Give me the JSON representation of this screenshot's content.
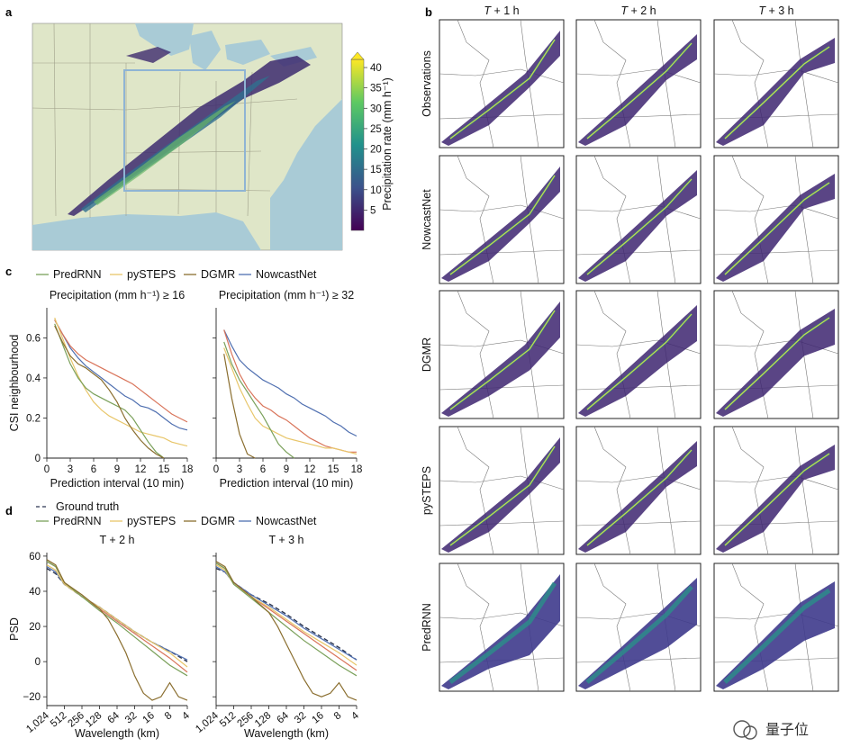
{
  "panel_labels": {
    "a": "a",
    "b": "b",
    "c": "c",
    "d": "d"
  },
  "colorbar": {
    "label": "Precipitation rate (mm h⁻¹)",
    "ticks": [
      "5",
      "10",
      "15",
      "20",
      "25",
      "30",
      "35",
      "40"
    ],
    "colors": [
      "#440154",
      "#3b528b",
      "#21918c",
      "#5ec962",
      "#fde725"
    ]
  },
  "grid": {
    "columns": [
      "T + 1 h",
      "T + 2 h",
      "T + 3 h"
    ],
    "rows": [
      "Observations",
      "NowcastNet",
      "DGMR",
      "pySTEPS",
      "PredRNN"
    ]
  },
  "series_colors": {
    "PredRNN": "#7aa05a",
    "pySTEPS": "#e8c66a",
    "DGMR": "#8a6e2f",
    "NowcastNet": "#4f6fb0",
    "Red": "#d9745a",
    "GroundTruth": "#2b3550"
  },
  "legend_c": [
    "PredRNN",
    "pySTEPS",
    "DGMR",
    "NowcastNet"
  ],
  "legend_d": {
    "gt": "Ground truth",
    "items": [
      "PredRNN",
      "pySTEPS",
      "DGMR",
      "NowcastNet"
    ]
  },
  "watermark": "量子位",
  "chart_data": [
    {
      "type": "line",
      "title": "Precipitation (mm h⁻¹) ≥ 16",
      "xlabel": "Prediction interval (10 min)",
      "ylabel": "CSI neighbourhood",
      "xlim": [
        0,
        18
      ],
      "ylim": [
        0,
        0.75
      ],
      "xticks": [
        "0",
        "3",
        "6",
        "9",
        "12",
        "15",
        "18"
      ],
      "yticks": [
        "0",
        "0.2",
        "0.4",
        "0.6"
      ],
      "series": [
        {
          "key": "NowcastNet",
          "x": [
            1,
            2,
            3,
            4,
            5,
            6,
            7,
            8,
            9,
            10,
            11,
            12,
            13,
            14,
            15,
            16,
            17,
            18
          ],
          "y": [
            0.69,
            0.62,
            0.55,
            0.5,
            0.46,
            0.43,
            0.4,
            0.37,
            0.34,
            0.31,
            0.29,
            0.26,
            0.25,
            0.23,
            0.2,
            0.17,
            0.15,
            0.14
          ]
        },
        {
          "key": "Red",
          "x": [
            1,
            2,
            3,
            4,
            5,
            6,
            7,
            8,
            9,
            10,
            11,
            12,
            13,
            14,
            15,
            16,
            17,
            18
          ],
          "y": [
            0.69,
            0.62,
            0.56,
            0.52,
            0.49,
            0.47,
            0.45,
            0.43,
            0.41,
            0.39,
            0.37,
            0.34,
            0.31,
            0.28,
            0.25,
            0.22,
            0.2,
            0.18
          ]
        },
        {
          "key": "pySTEPS",
          "x": [
            1,
            2,
            3,
            4,
            5,
            6,
            7,
            8,
            9,
            10,
            11,
            12,
            13,
            14,
            15,
            16,
            17,
            18
          ],
          "y": [
            0.7,
            0.6,
            0.5,
            0.41,
            0.34,
            0.28,
            0.24,
            0.21,
            0.19,
            0.17,
            0.15,
            0.13,
            0.12,
            0.11,
            0.1,
            0.08,
            0.07,
            0.06
          ]
        },
        {
          "key": "PredRNN",
          "x": [
            1,
            2,
            3,
            4,
            5,
            6,
            7,
            8,
            9,
            10,
            11,
            12,
            13,
            14,
            15
          ],
          "y": [
            0.67,
            0.57,
            0.47,
            0.4,
            0.35,
            0.32,
            0.3,
            0.28,
            0.26,
            0.24,
            0.2,
            0.14,
            0.08,
            0.03,
            0.0
          ]
        },
        {
          "key": "DGMR",
          "x": [
            1,
            2,
            3,
            4,
            5,
            6,
            7,
            8,
            9,
            10,
            11,
            12,
            13,
            14,
            15
          ],
          "y": [
            0.66,
            0.58,
            0.51,
            0.47,
            0.45,
            0.42,
            0.39,
            0.34,
            0.28,
            0.2,
            0.14,
            0.09,
            0.05,
            0.02,
            0.0
          ]
        }
      ]
    },
    {
      "type": "line",
      "title": "Precipitation (mm h⁻¹) ≥ 32",
      "xlabel": "Prediction interval (10 min)",
      "ylabel": "",
      "xlim": [
        0,
        18
      ],
      "ylim": [
        0,
        0.75
      ],
      "xticks": [
        "0",
        "3",
        "6",
        "9",
        "12",
        "15",
        "18"
      ],
      "yticks": [],
      "series": [
        {
          "key": "NowcastNet",
          "x": [
            1,
            2,
            3,
            4,
            5,
            6,
            7,
            8,
            9,
            10,
            11,
            12,
            13,
            14,
            15,
            16,
            17,
            18
          ],
          "y": [
            0.64,
            0.56,
            0.49,
            0.45,
            0.42,
            0.39,
            0.37,
            0.35,
            0.32,
            0.3,
            0.27,
            0.25,
            0.23,
            0.21,
            0.18,
            0.16,
            0.13,
            0.11
          ]
        },
        {
          "key": "Red",
          "x": [
            1,
            2,
            3,
            4,
            5,
            6,
            7,
            8,
            9,
            10,
            11,
            12,
            13,
            14,
            15,
            16,
            17,
            18
          ],
          "y": [
            0.64,
            0.52,
            0.42,
            0.35,
            0.3,
            0.26,
            0.24,
            0.21,
            0.19,
            0.16,
            0.13,
            0.1,
            0.08,
            0.06,
            0.05,
            0.04,
            0.03,
            0.03
          ]
        },
        {
          "key": "pySTEPS",
          "x": [
            1,
            2,
            3,
            4,
            5,
            6,
            7,
            8,
            9,
            10,
            11,
            12,
            13,
            14,
            15,
            16,
            17,
            18
          ],
          "y": [
            0.55,
            0.45,
            0.35,
            0.27,
            0.2,
            0.16,
            0.14,
            0.12,
            0.1,
            0.09,
            0.08,
            0.07,
            0.06,
            0.05,
            0.05,
            0.04,
            0.03,
            0.02
          ]
        },
        {
          "key": "PredRNN",
          "x": [
            1,
            2,
            3,
            4,
            5,
            6,
            7,
            8,
            9,
            10
          ],
          "y": [
            0.58,
            0.47,
            0.39,
            0.33,
            0.27,
            0.21,
            0.14,
            0.07,
            0.03,
            0.0
          ]
        },
        {
          "key": "DGMR",
          "x": [
            1,
            2,
            3,
            4,
            5
          ],
          "y": [
            0.52,
            0.3,
            0.12,
            0.02,
            0.0
          ]
        }
      ]
    },
    {
      "type": "line",
      "title": "T + 2 h",
      "xlabel": "Wavelength (km)",
      "ylabel": "PSD",
      "xlim": [
        0,
        8
      ],
      "ylim": [
        -25,
        62
      ],
      "xticks": [
        "1,024",
        "512",
        "256",
        "128",
        "64",
        "32",
        "16",
        "8",
        "4"
      ],
      "yticks": [
        "−20",
        "0",
        "20",
        "40",
        "60"
      ],
      "series": [
        {
          "key": "GroundTruth",
          "x": [
            0,
            0.5,
            1,
            2,
            3,
            4,
            5,
            6,
            7,
            8
          ],
          "y": [
            53,
            50,
            44,
            37,
            31,
            24,
            17,
            11,
            6,
            0
          ]
        },
        {
          "key": "NowcastNet",
          "x": [
            0,
            0.5,
            1,
            2,
            3,
            4,
            5,
            6,
            7,
            8
          ],
          "y": [
            54,
            51,
            44,
            37,
            31,
            24,
            17,
            11,
            6,
            1
          ]
        },
        {
          "key": "Red",
          "x": [
            0,
            0.5,
            1,
            2,
            3,
            4,
            5,
            6,
            7,
            8
          ],
          "y": [
            57,
            54,
            45,
            37,
            30,
            23,
            16,
            9,
            2,
            -6
          ]
        },
        {
          "key": "pySTEPS",
          "x": [
            0,
            0.5,
            1,
            2,
            3,
            4,
            5,
            6,
            7,
            8
          ],
          "y": [
            55,
            52,
            44,
            37,
            31,
            24,
            17,
            11,
            5,
            -3
          ]
        },
        {
          "key": "PredRNN",
          "x": [
            0,
            0.5,
            1,
            2,
            3,
            4,
            5,
            6,
            7,
            8
          ],
          "y": [
            57,
            54,
            45,
            37,
            29,
            22,
            14,
            6,
            -2,
            -8
          ]
        },
        {
          "key": "DGMR",
          "x": [
            0,
            0.5,
            1,
            2,
            3,
            3.5,
            4,
            4.5,
            5,
            5.5,
            6,
            6.5,
            7,
            7.5,
            8
          ],
          "y": [
            58,
            55,
            45,
            38,
            30,
            24,
            15,
            5,
            -8,
            -18,
            -22,
            -20,
            -12,
            -20,
            -22
          ]
        }
      ]
    },
    {
      "type": "line",
      "title": "T + 3 h",
      "xlabel": "Wavelength (km)",
      "ylabel": "",
      "xlim": [
        0,
        8
      ],
      "ylim": [
        -25,
        62
      ],
      "xticks": [
        "1,024",
        "512",
        "256",
        "128",
        "64",
        "32",
        "16",
        "8",
        "4"
      ],
      "yticks": [],
      "series": [
        {
          "key": "GroundTruth",
          "x": [
            0,
            0.5,
            1,
            2,
            3,
            4,
            5,
            6,
            7,
            8
          ],
          "y": [
            53,
            51,
            45,
            38,
            33,
            27,
            20,
            14,
            8,
            1
          ]
        },
        {
          "key": "NowcastNet",
          "x": [
            0,
            0.5,
            1,
            2,
            3,
            4,
            5,
            6,
            7,
            8
          ],
          "y": [
            54,
            51,
            45,
            38,
            32,
            26,
            19,
            13,
            7,
            1
          ]
        },
        {
          "key": "Red",
          "x": [
            0,
            0.5,
            1,
            2,
            3,
            4,
            5,
            6,
            7,
            8
          ],
          "y": [
            56,
            53,
            45,
            37,
            30,
            23,
            16,
            9,
            2,
            -5
          ]
        },
        {
          "key": "pySTEPS",
          "x": [
            0,
            0.5,
            1,
            2,
            3,
            4,
            5,
            6,
            7,
            8
          ],
          "y": [
            55,
            52,
            44,
            37,
            31,
            24,
            17,
            11,
            5,
            -2
          ]
        },
        {
          "key": "PredRNN",
          "x": [
            0,
            0.5,
            1,
            2,
            3,
            4,
            5,
            6,
            7,
            8
          ],
          "y": [
            56,
            53,
            44,
            36,
            28,
            20,
            12,
            5,
            -2,
            -8
          ]
        },
        {
          "key": "DGMR",
          "x": [
            0,
            0.5,
            1,
            2,
            3,
            3.5,
            4,
            4.5,
            5,
            5.5,
            6,
            6.5,
            7,
            7.5,
            8
          ],
          "y": [
            57,
            54,
            45,
            37,
            28,
            20,
            10,
            0,
            -10,
            -18,
            -20,
            -18,
            -12,
            -20,
            -22
          ]
        }
      ]
    }
  ]
}
